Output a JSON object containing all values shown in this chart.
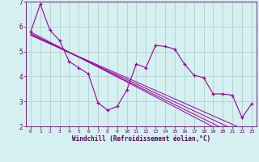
{
  "x": [
    0,
    1,
    2,
    3,
    4,
    5,
    6,
    7,
    8,
    9,
    10,
    11,
    12,
    13,
    14,
    15,
    16,
    17,
    18,
    19,
    20,
    21,
    22,
    23
  ],
  "main_line": [
    5.8,
    6.9,
    5.85,
    5.45,
    4.6,
    4.35,
    4.1,
    2.95,
    2.65,
    2.8,
    3.45,
    4.5,
    4.35,
    5.25,
    5.2,
    5.1,
    4.5,
    4.05,
    3.95,
    3.3,
    3.3,
    3.25,
    2.35,
    2.9
  ],
  "reg1": [
    5.78,
    5.58,
    5.38,
    5.18,
    4.98,
    4.78,
    4.58,
    4.38,
    4.18,
    3.98,
    3.78,
    3.58,
    3.38,
    3.18,
    2.98,
    2.78,
    2.58,
    2.38,
    2.18,
    1.98,
    1.78,
    1.58,
    1.38,
    1.18
  ],
  "reg2": [
    5.72,
    5.53,
    5.34,
    5.15,
    4.96,
    4.77,
    4.58,
    4.39,
    4.2,
    4.01,
    3.82,
    3.63,
    3.44,
    3.25,
    3.06,
    2.87,
    2.68,
    2.49,
    2.3,
    2.11,
    1.92,
    1.73,
    1.54,
    1.35
  ],
  "reg3": [
    5.68,
    5.5,
    5.32,
    5.14,
    4.96,
    4.78,
    4.6,
    4.42,
    4.24,
    4.06,
    3.88,
    3.7,
    3.52,
    3.34,
    3.16,
    2.98,
    2.8,
    2.62,
    2.44,
    2.26,
    2.08,
    1.9,
    1.72,
    1.54
  ],
  "reg4": [
    5.65,
    5.48,
    5.31,
    5.14,
    4.97,
    4.8,
    4.63,
    4.46,
    4.29,
    4.12,
    3.95,
    3.78,
    3.61,
    3.44,
    3.27,
    3.1,
    2.93,
    2.76,
    2.59,
    2.42,
    2.25,
    2.08,
    1.91,
    1.74
  ],
  "line_color": "#990099",
  "bg_color": "#d4f0f0",
  "grid_color": "#b0c8c8",
  "xlabel": "Windchill (Refroidissement éolien,°C)",
  "ylim": [
    2,
    7
  ],
  "xlim": [
    -0.5,
    23.5
  ],
  "yticks": [
    2,
    3,
    4,
    5,
    6,
    7
  ],
  "xticks": [
    0,
    1,
    2,
    3,
    4,
    5,
    6,
    7,
    8,
    9,
    10,
    11,
    12,
    13,
    14,
    15,
    16,
    17,
    18,
    19,
    20,
    21,
    22,
    23
  ]
}
